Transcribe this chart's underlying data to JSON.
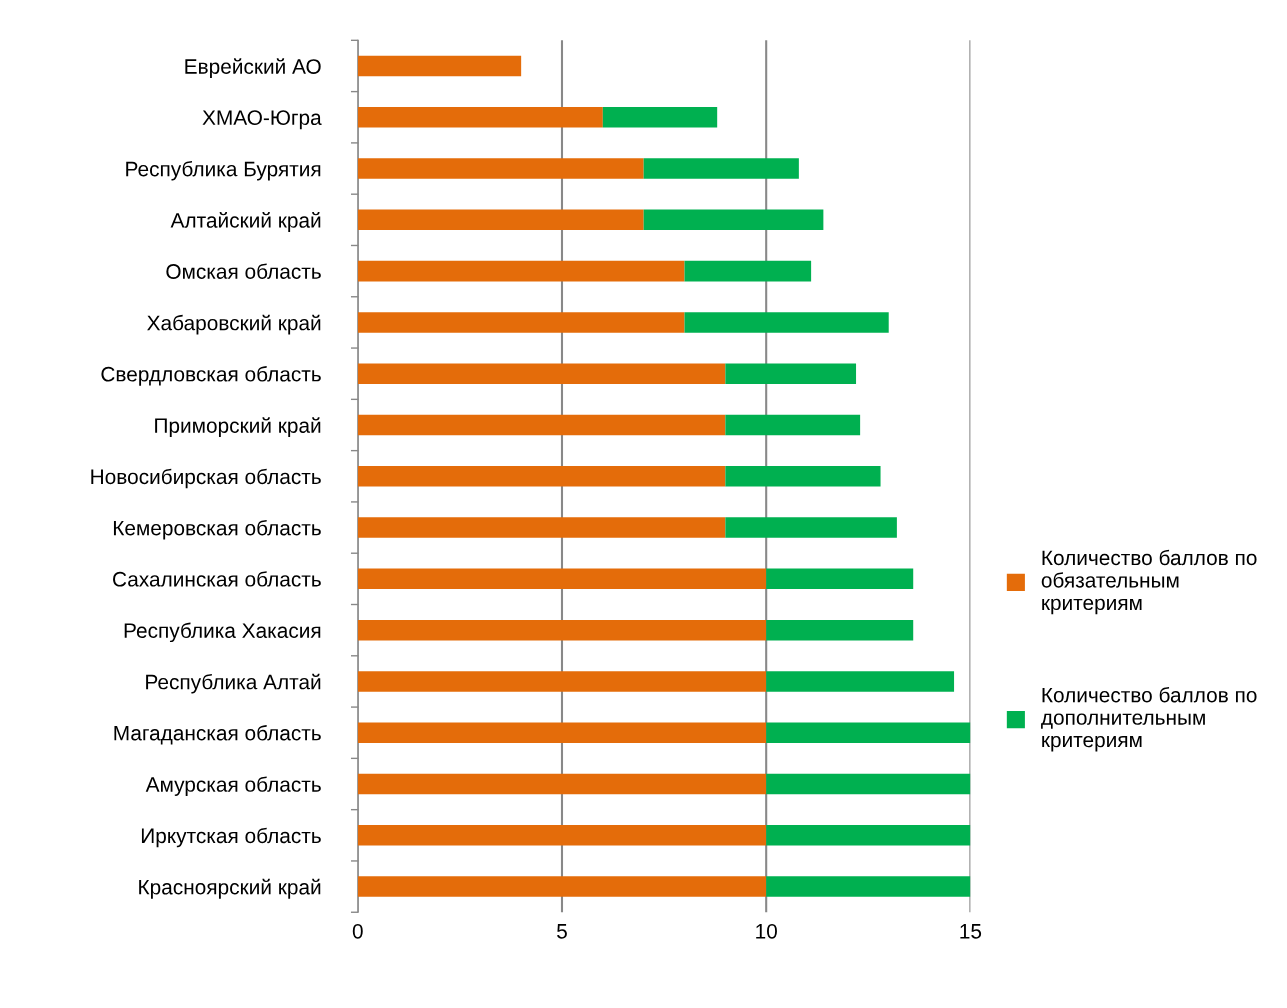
{
  "chart_data": {
    "type": "bar",
    "orientation": "horizontal",
    "stacked": true,
    "categories": [
      "Еврейский АО",
      "ХМАО-Югра",
      "Республика Бурятия",
      "Алтайский край",
      "Омская область",
      "Хабаровский край",
      "Свердловская область",
      "Приморский край",
      "Новосибирская область",
      "Кемеровская область",
      "Сахалинская область",
      "Республика Хакасия",
      "Республика Алтай",
      "Магаданская область",
      "Амурская область",
      "Иркутская область",
      "Красноярский край"
    ],
    "series": [
      {
        "name": "Количество баллов по обязательным критериям",
        "color": "#e46c0a",
        "values": [
          4,
          6,
          7,
          7,
          8,
          8,
          9,
          9,
          9,
          9,
          10,
          10,
          10,
          10,
          10,
          10,
          10
        ]
      },
      {
        "name": "Количество баллов по дополнительным критериям",
        "color": "#00b050",
        "values": [
          0,
          2.8,
          3.8,
          4.4,
          3.1,
          5.0,
          3.2,
          3.3,
          3.8,
          4.2,
          3.6,
          3.6,
          4.6,
          5,
          5,
          5,
          5
        ]
      }
    ],
    "xlim": [
      0,
      15
    ],
    "xticks": [
      0,
      5,
      10,
      15
    ],
    "grid": "x",
    "legend": "right"
  }
}
